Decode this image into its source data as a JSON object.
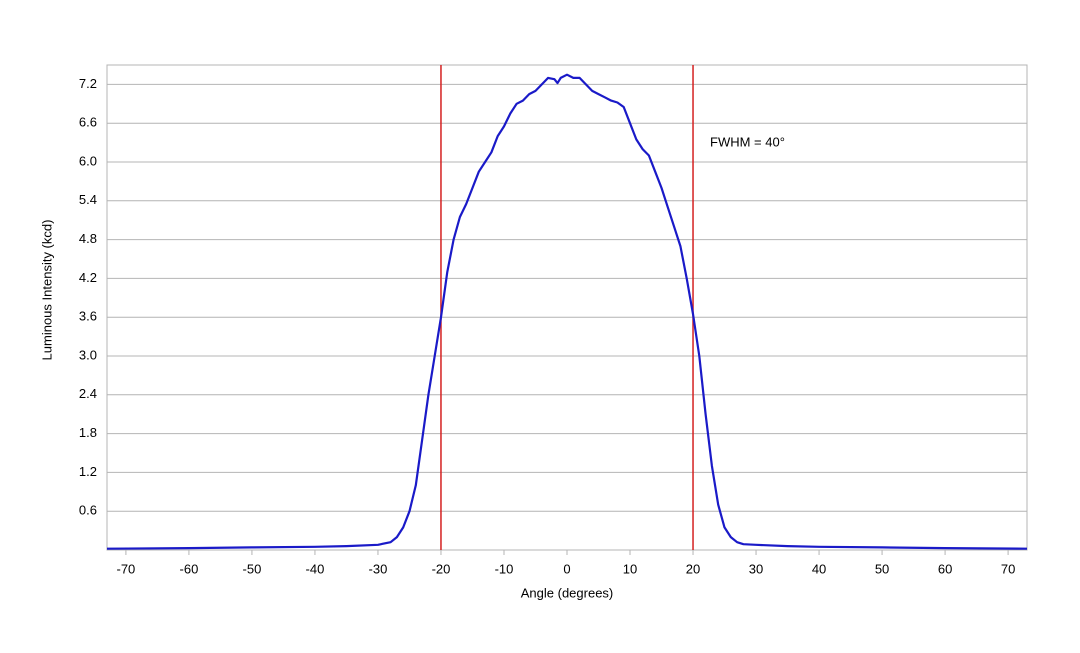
{
  "chart_data": {
    "type": "line",
    "x_label": "Angle (degrees)",
    "y_label": "Luminous Intensity (kcd)",
    "annotation": "FWHM = 40°",
    "x": [
      -73,
      -60,
      -50,
      -40,
      -35,
      -30,
      -28,
      -27,
      -26,
      -25,
      -24,
      -23,
      -22,
      -21,
      -20,
      -19,
      -18,
      -17,
      -16,
      -15,
      -14,
      -13,
      -12,
      -11,
      -10,
      -9,
      -8,
      -7,
      -6,
      -5,
      -4,
      -3,
      -2,
      -1.5,
      -1,
      0,
      1,
      2,
      3,
      4,
      5,
      6,
      7,
      8,
      9,
      10,
      11,
      12,
      13,
      14,
      15,
      16,
      17,
      18,
      19,
      20,
      21,
      22,
      23,
      24,
      25,
      26,
      27,
      28,
      30,
      35,
      40,
      50,
      60,
      73
    ],
    "values": [
      0.02,
      0.03,
      0.04,
      0.05,
      0.06,
      0.08,
      0.12,
      0.2,
      0.35,
      0.6,
      1.0,
      1.7,
      2.4,
      3.0,
      3.6,
      4.3,
      4.8,
      5.15,
      5.35,
      5.6,
      5.85,
      6.0,
      6.15,
      6.4,
      6.55,
      6.75,
      6.9,
      6.95,
      7.05,
      7.1,
      7.2,
      7.3,
      7.28,
      7.22,
      7.3,
      7.35,
      7.3,
      7.3,
      7.2,
      7.1,
      7.05,
      7.0,
      6.95,
      6.92,
      6.85,
      6.6,
      6.35,
      6.2,
      6.1,
      5.85,
      5.6,
      5.3,
      5.0,
      4.7,
      4.2,
      3.65,
      3.0,
      2.1,
      1.3,
      0.7,
      0.35,
      0.2,
      0.12,
      0.09,
      0.08,
      0.06,
      0.05,
      0.04,
      0.03,
      0.02
    ],
    "color": "#1a1ac8",
    "vlines": [
      -20,
      20
    ],
    "vline_color": "#d42020",
    "xlim": [
      -73,
      73
    ],
    "xticks": [
      -70,
      -60,
      -50,
      -40,
      -30,
      -20,
      -10,
      0,
      10,
      20,
      30,
      40,
      50,
      60,
      70
    ],
    "ylim": [
      0,
      7.5
    ],
    "yticks": [
      0.6,
      1.2,
      1.8,
      2.4,
      {
        "value": 3.0,
        "label": "3.0"
      },
      3.6,
      4.2,
      4.8,
      5.4,
      {
        "value": 6.0,
        "label": "6.0"
      },
      6.6,
      7.2
    ],
    "grid": true
  }
}
